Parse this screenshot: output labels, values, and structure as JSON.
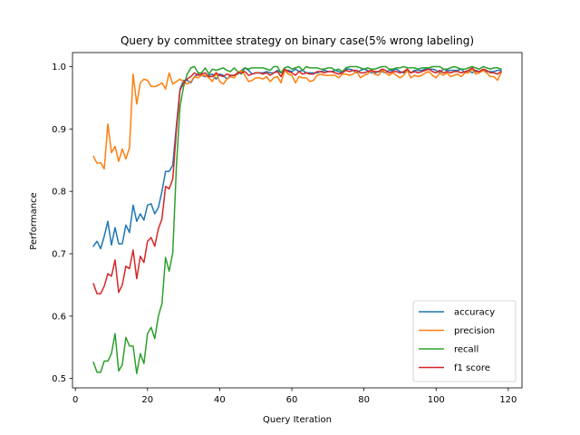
{
  "chart_data": {
    "type": "line",
    "title": "Query by committee strategy on binary case(5% wrong labeling)",
    "xlabel": "Query Iteration",
    "ylabel": "Performance",
    "xlim": [
      -0.8,
      123.8
    ],
    "ylim": [
      0.485,
      1.0225
    ],
    "xticks": [
      0,
      20,
      40,
      60,
      80,
      100,
      120
    ],
    "yticks": [
      0.5,
      0.6,
      0.7,
      0.8,
      0.9,
      1.0
    ],
    "ytick_labels": [
      "0.5",
      "0.6",
      "0.7",
      "0.8",
      "0.9",
      "1.0"
    ],
    "grid": false,
    "legend_position": "lower-right",
    "x_start": 5,
    "series": [
      {
        "name": "accuracy",
        "color": "#1f77b4",
        "values": [
          0.712,
          0.72,
          0.708,
          0.728,
          0.752,
          0.714,
          0.742,
          0.716,
          0.716,
          0.746,
          0.734,
          0.778,
          0.752,
          0.764,
          0.754,
          0.778,
          0.78,
          0.764,
          0.774,
          0.8,
          0.832,
          0.832,
          0.842,
          0.906,
          0.964,
          0.978,
          0.978,
          0.974,
          0.984,
          0.988,
          0.986,
          0.984,
          0.986,
          0.988,
          0.98,
          0.988,
          0.986,
          0.98,
          0.986,
          0.986,
          0.988,
          0.994,
          0.998,
          0.994,
          0.988,
          0.99,
          0.99,
          0.99,
          0.992,
          0.99,
          0.99,
          0.994,
          0.99,
          0.994,
          0.994,
          0.992,
          0.996,
          0.992,
          0.994,
          0.99,
          0.99,
          0.99,
          0.99,
          0.992,
          0.994,
          0.992,
          0.992,
          0.994,
          0.992,
          0.99,
          0.996,
          0.996,
          0.994,
          0.99,
          0.994,
          0.996,
          0.994,
          0.99,
          0.99,
          0.992,
          0.992,
          0.99,
          0.994,
          0.994,
          0.996,
          0.992,
          0.99,
          0.994,
          0.99,
          0.994,
          0.994,
          0.994,
          0.996,
          0.996,
          0.996,
          0.994,
          0.99,
          0.996,
          0.994,
          0.994,
          0.994,
          0.994,
          0.996,
          0.99,
          0.994,
          0.99,
          0.994,
          0.992,
          0.994,
          0.992,
          0.992,
          0.992,
          0.994,
          0.994
        ]
      },
      {
        "name": "precision",
        "color": "#ff7f0e",
        "values": [
          0.856,
          0.845,
          0.846,
          0.836,
          0.908,
          0.862,
          0.872,
          0.848,
          0.868,
          0.852,
          0.87,
          0.988,
          0.94,
          0.974,
          0.98,
          0.978,
          0.968,
          0.968,
          0.97,
          0.974,
          0.964,
          0.99,
          0.972,
          0.976,
          0.98,
          0.976,
          0.972,
          0.976,
          0.984,
          0.982,
          0.986,
          0.986,
          0.982,
          0.976,
          0.99,
          0.976,
          0.972,
          0.98,
          0.984,
          0.982,
          0.99,
          0.994,
          0.986,
          0.976,
          0.978,
          0.982,
          0.982,
          0.98,
          0.984,
          0.976,
          0.982,
          0.984,
          0.974,
          0.994,
          0.988,
          0.986,
          0.974,
          0.984,
          0.982,
          0.982,
          0.976,
          0.978,
          0.986,
          0.988,
          0.986,
          0.986,
          0.986,
          0.986,
          0.982,
          0.988,
          0.988,
          0.986,
          0.988,
          0.992,
          0.982,
          0.986,
          0.988,
          0.994,
          0.988,
          0.986,
          0.994,
          0.99,
          0.986,
          0.99,
          0.986,
          0.982,
          0.986,
          0.994,
          0.982,
          0.986,
          0.984,
          0.986,
          0.99,
          0.992,
          0.986,
          0.982,
          0.99,
          0.986,
          0.99,
          0.984,
          0.986,
          0.988,
          0.984,
          0.99,
          0.99,
          0.996,
          0.988,
          0.99,
          0.994,
          0.99,
          0.984,
          0.984,
          0.978,
          0.99
        ]
      },
      {
        "name": "recall",
        "color": "#2ca02c",
        "values": [
          0.526,
          0.51,
          0.51,
          0.528,
          0.528,
          0.54,
          0.572,
          0.512,
          0.522,
          0.566,
          0.552,
          0.552,
          0.508,
          0.54,
          0.524,
          0.572,
          0.582,
          0.564,
          0.6,
          0.62,
          0.694,
          0.672,
          0.702,
          0.84,
          0.936,
          0.968,
          0.988,
          0.998,
          1.0,
          0.99,
          0.99,
          0.998,
          0.988,
          0.996,
          0.994,
          0.996,
          0.998,
          0.994,
          0.992,
          0.998,
          0.992,
          0.988,
          0.998,
          0.996,
          0.998,
          0.998,
          0.998,
          0.998,
          0.996,
          0.994,
          1.0,
          1.0,
          0.99,
          0.998,
          1.0,
          0.996,
          0.998,
          1.0,
          0.994,
          1.0,
          0.998,
          0.998,
          0.998,
          0.996,
          0.996,
          0.998,
          0.998,
          0.994,
          0.996,
          0.992,
          0.998,
          1.0,
          1.0,
          1.0,
          0.998,
          0.996,
          0.998,
          0.996,
          0.996,
          0.998,
          1.0,
          1.0,
          0.996,
          0.996,
          0.998,
          0.998,
          1.0,
          0.998,
          0.998,
          0.998,
          0.996,
          0.998,
          0.998,
          0.998,
          1.0,
          1.0,
          1.0,
          0.996,
          0.996,
          0.998,
          1.0,
          0.998,
          0.996,
          0.996,
          0.998,
          1.0,
          0.998,
          0.996,
          1.0,
          0.998,
          0.996,
          0.998,
          0.998,
          0.996
        ]
      },
      {
        "name": "f1 score",
        "color": "#d62728",
        "values": [
          0.652,
          0.636,
          0.636,
          0.648,
          0.668,
          0.664,
          0.69,
          0.638,
          0.65,
          0.68,
          0.676,
          0.706,
          0.66,
          0.696,
          0.686,
          0.72,
          0.726,
          0.712,
          0.74,
          0.756,
          0.808,
          0.804,
          0.82,
          0.898,
          0.962,
          0.974,
          0.98,
          0.984,
          0.99,
          0.986,
          0.988,
          0.99,
          0.984,
          0.984,
          0.99,
          0.986,
          0.984,
          0.988,
          0.986,
          0.986,
          0.99,
          0.99,
          0.992,
          0.986,
          0.988,
          0.99,
          0.99,
          0.988,
          0.99,
          0.986,
          0.99,
          0.992,
          0.984,
          0.996,
          0.992,
          0.99,
          0.986,
          0.992,
          0.988,
          0.99,
          0.988,
          0.988,
          0.992,
          0.992,
          0.99,
          0.992,
          0.992,
          0.99,
          0.988,
          0.99,
          0.994,
          0.992,
          0.994,
          0.994,
          0.99,
          0.99,
          0.992,
          0.994,
          0.992,
          0.992,
          0.996,
          0.994,
          0.99,
          0.992,
          0.992,
          0.99,
          0.992,
          0.996,
          0.99,
          0.992,
          0.99,
          0.992,
          0.994,
          0.996,
          0.992,
          0.99,
          0.994,
          0.99,
          0.992,
          0.99,
          0.992,
          0.992,
          0.99,
          0.992,
          0.994,
          0.998,
          0.992,
          0.992,
          0.996,
          0.994,
          0.99,
          0.99,
          0.988,
          0.992
        ]
      }
    ]
  }
}
